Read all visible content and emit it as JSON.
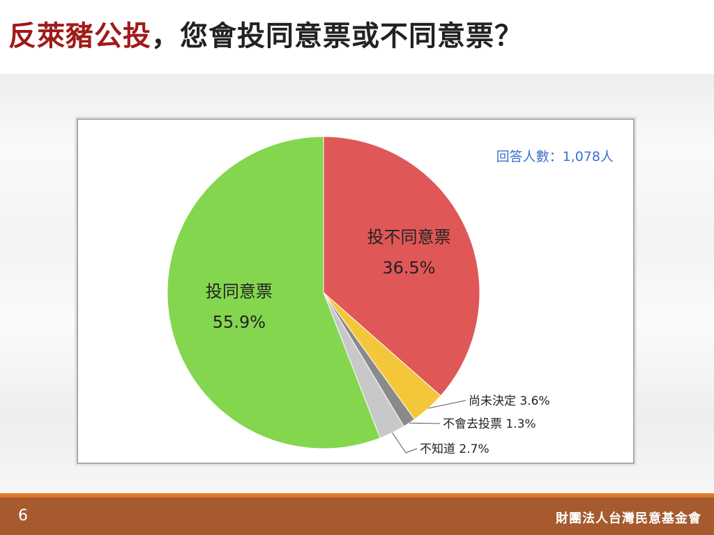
{
  "slide": {
    "title_highlight": "反萊豬公投",
    "title_rest": "，您會投同意票或不同意票？",
    "page_number": "6",
    "organization": "財團法人台灣民意基金會",
    "colors": {
      "title_highlight": "#a01a1a",
      "footer": "#a65a2e",
      "footer_accent": "#e07a2a",
      "note": "#3c6fd0"
    }
  },
  "chart_data": {
    "type": "pie",
    "note": "回答人數：1,078人",
    "slices": [
      {
        "label": "投不同意票",
        "value": 36.5,
        "value_label": "36.5%",
        "color": "#e05757"
      },
      {
        "label": "尚未決定",
        "value": 3.6,
        "value_label": "3.6%",
        "color": "#f4c73a"
      },
      {
        "label": "不會去投票",
        "value": 1.3,
        "value_label": "1.3%",
        "color": "#8a8a8a"
      },
      {
        "label": "不知道",
        "value": 2.7,
        "value_label": "2.7%",
        "color": "#c8c8c8"
      },
      {
        "label": "投同意票",
        "value": 55.9,
        "value_label": "55.9%",
        "color": "#84d64e"
      }
    ]
  }
}
